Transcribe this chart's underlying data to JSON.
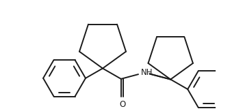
{
  "bg_color": "#ffffff",
  "line_color": "#1a1a1a",
  "lw": 1.4,
  "text_color": "#1a1a1a",
  "nh_label": "NH",
  "o_label": "O",
  "font_size_nh": 8.5,
  "font_size_o": 8.5
}
